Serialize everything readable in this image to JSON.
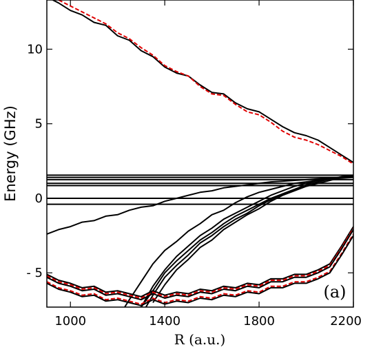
{
  "chart_data": {
    "type": "line",
    "title": "",
    "xlabel": "R (a.u.)",
    "ylabel": "Energy (GHz)",
    "panel_label": "(a)",
    "xlim": [
      900,
      2200
    ],
    "ylim": [
      -7.3,
      13.3
    ],
    "xticks": [
      1000,
      1400,
      1800,
      2200
    ],
    "yticks": [
      {
        "value": 10,
        "label": "10"
      },
      {
        "value": 5,
        "label": "5"
      },
      {
        "value": 0,
        "label": "0"
      },
      {
        "value": -5,
        "label": "- 5"
      }
    ],
    "colors": {
      "computed": "#000000",
      "model": "#e00000"
    },
    "series": [
      {
        "group": "computed",
        "x": [
          925,
          950,
          1000,
          1050,
          1100,
          1150,
          1200,
          1250,
          1300,
          1350,
          1400,
          1450,
          1500,
          1550,
          1600,
          1650,
          1700,
          1750,
          1800,
          1850,
          1900,
          1950,
          2000,
          2050,
          2100,
          2150,
          2200
        ],
        "y": [
          13.3,
          13.1,
          12.6,
          12.3,
          11.8,
          11.6,
          10.9,
          10.6,
          9.9,
          9.5,
          8.8,
          8.4,
          8.2,
          7.6,
          7.1,
          7.0,
          6.4,
          6.0,
          5.8,
          5.3,
          4.8,
          4.4,
          4.2,
          3.9,
          3.4,
          2.9,
          2.4
        ]
      },
      {
        "group": "model",
        "x": [
          950,
          1000,
          1050,
          1100,
          1150,
          1200,
          1250,
          1300,
          1350,
          1400,
          1450,
          1500,
          1550,
          1600,
          1650,
          1700,
          1750,
          1800,
          1850,
          1900,
          1950,
          2000,
          2050,
          2100,
          2150,
          2200
        ],
        "y": [
          13.3,
          12.9,
          12.5,
          12.1,
          11.7,
          11.1,
          10.7,
          10.1,
          9.6,
          8.9,
          8.5,
          8.2,
          7.5,
          7.0,
          6.9,
          6.3,
          5.8,
          5.6,
          5.1,
          4.5,
          4.1,
          3.9,
          3.6,
          3.2,
          2.8,
          2.3
        ]
      },
      {
        "group": "computed",
        "x": [
          900,
          2200
        ],
        "y": [
          1.55,
          1.55
        ]
      },
      {
        "group": "computed",
        "x": [
          900,
          2200
        ],
        "y": [
          1.4,
          1.4
        ]
      },
      {
        "group": "computed",
        "x": [
          900,
          2200
        ],
        "y": [
          1.25,
          1.25
        ]
      },
      {
        "group": "computed",
        "x": [
          900,
          2200
        ],
        "y": [
          1.0,
          1.0
        ]
      },
      {
        "group": "computed",
        "x": [
          900,
          2200
        ],
        "y": [
          0.85,
          0.85
        ]
      },
      {
        "group": "computed",
        "x": [
          900,
          2200
        ],
        "y": [
          0.0,
          0.0
        ]
      },
      {
        "group": "computed",
        "x": [
          900,
          2200
        ],
        "y": [
          -0.4,
          -0.4
        ]
      },
      {
        "group": "computed",
        "x": [
          900,
          950,
          1000,
          1050,
          1100,
          1150,
          1200,
          1250,
          1300,
          1350,
          1400,
          1450,
          1500,
          1550,
          1600,
          1650,
          1700,
          1750,
          1800,
          1850,
          1900,
          1950,
          2000,
          2050,
          2100,
          2150,
          2200
        ],
        "y": [
          -2.4,
          -2.1,
          -1.9,
          -1.6,
          -1.5,
          -1.2,
          -1.1,
          -0.8,
          -0.6,
          -0.5,
          -0.2,
          0.0,
          0.2,
          0.4,
          0.5,
          0.7,
          0.8,
          0.9,
          1.0,
          1.1,
          1.15,
          1.2,
          1.25,
          1.3,
          1.35,
          1.4,
          1.45
        ]
      },
      {
        "group": "computed",
        "x": [
          1300,
          1350,
          1400,
          1450,
          1500,
          1550,
          1600,
          1650,
          1700,
          1750,
          1800,
          1850,
          1900,
          1950,
          2000,
          2050,
          2100,
          2150,
          2200
        ],
        "y": [
          -7.3,
          -5.9,
          -4.8,
          -3.9,
          -3.2,
          -2.5,
          -2.0,
          -1.4,
          -1.0,
          -0.6,
          -0.2,
          0.2,
          0.5,
          0.8,
          1.0,
          1.2,
          1.3,
          1.4,
          1.5
        ]
      },
      {
        "group": "computed",
        "x": [
          1300,
          1350,
          1400,
          1450,
          1500,
          1550,
          1600,
          1650,
          1700,
          1750,
          1800,
          1850,
          1900,
          1950,
          2000,
          2050,
          2100,
          2150,
          2200
        ],
        "y": [
          -7.3,
          -6.2,
          -5.0,
          -4.2,
          -3.5,
          -2.8,
          -2.3,
          -1.7,
          -1.2,
          -0.8,
          -0.4,
          0.0,
          0.3,
          0.6,
          0.9,
          1.1,
          1.3,
          1.4,
          1.5
        ]
      },
      {
        "group": "computed",
        "x": [
          1320,
          1350,
          1400,
          1450,
          1500,
          1550,
          1600,
          1650,
          1700,
          1750,
          1800,
          1850,
          1900,
          1950,
          2000,
          2050,
          2100,
          2150,
          2200
        ],
        "y": [
          -7.3,
          -6.5,
          -5.3,
          -4.5,
          -3.8,
          -3.0,
          -2.5,
          -1.9,
          -1.4,
          -1.0,
          -0.5,
          -0.1,
          0.3,
          0.6,
          0.9,
          1.1,
          1.3,
          1.45,
          1.55
        ]
      },
      {
        "group": "computed",
        "x": [
          1350,
          1400,
          1450,
          1500,
          1550,
          1600,
          1650,
          1700,
          1750,
          1800,
          1850,
          1900,
          1950,
          2000,
          2050,
          2100,
          2150,
          2200
        ],
        "y": [
          -7.0,
          -5.8,
          -4.8,
          -4.1,
          -3.3,
          -2.8,
          -2.1,
          -1.6,
          -1.1,
          -0.7,
          -0.2,
          0.2,
          0.5,
          0.8,
          1.0,
          1.2,
          1.4,
          1.5
        ]
      },
      {
        "group": "computed",
        "x": [
          1230,
          1250,
          1300,
          1350,
          1400,
          1450,
          1500,
          1550,
          1600,
          1650,
          1700,
          1750,
          1800,
          1850,
          1900,
          1950,
          2000,
          2050,
          2100,
          2150,
          2200
        ],
        "y": [
          -7.3,
          -6.8,
          -5.6,
          -4.4,
          -3.5,
          -2.9,
          -2.2,
          -1.7,
          -1.1,
          -0.8,
          -0.3,
          0.1,
          0.4,
          0.6,
          0.8,
          1.0,
          1.1,
          1.2,
          1.3,
          1.35,
          1.4
        ]
      },
      {
        "group": "computed",
        "x": [
          900,
          950,
          1000,
          1050,
          1100,
          1150,
          1200,
          1250,
          1300,
          1350,
          1400,
          1450,
          1500,
          1550,
          1600,
          1650,
          1700,
          1750,
          1800,
          1850,
          1900,
          1950,
          2000,
          2050,
          2100,
          2150,
          2200
        ],
        "y": [
          -5.1,
          -5.5,
          -5.7,
          -6.0,
          -5.9,
          -6.3,
          -6.2,
          -6.4,
          -6.6,
          -6.2,
          -6.5,
          -6.3,
          -6.4,
          -6.1,
          -6.2,
          -5.9,
          -6.0,
          -5.7,
          -5.8,
          -5.4,
          -5.4,
          -5.1,
          -5.1,
          -4.8,
          -4.4,
          -3.2,
          -1.9
        ]
      },
      {
        "group": "model",
        "x": [
          900,
          950,
          1000,
          1050,
          1100,
          1150,
          1200,
          1250,
          1300,
          1350,
          1400,
          1450,
          1500,
          1550,
          1600,
          1650,
          1700,
          1750,
          1800,
          1850,
          1900,
          1950,
          2000,
          2050,
          2100,
          2150,
          2200
        ],
        "y": [
          -5.2,
          -5.6,
          -5.8,
          -6.1,
          -6.0,
          -6.4,
          -6.3,
          -6.5,
          -6.7,
          -6.3,
          -6.6,
          -6.4,
          -6.5,
          -6.2,
          -6.3,
          -6.0,
          -6.1,
          -5.8,
          -5.9,
          -5.5,
          -5.5,
          -5.2,
          -5.2,
          -4.9,
          -4.5,
          -3.3,
          -2.0
        ]
      },
      {
        "group": "computed",
        "x": [
          900,
          950,
          1000,
          1050,
          1100,
          1150,
          1200,
          1250,
          1300,
          1350,
          1400,
          1450,
          1500,
          1550,
          1600,
          1650,
          1700,
          1750,
          1800,
          1850,
          1900,
          1950,
          2000,
          2050,
          2100,
          2150,
          2200
        ],
        "y": [
          -5.3,
          -5.7,
          -5.9,
          -6.2,
          -6.1,
          -6.5,
          -6.4,
          -6.6,
          -6.8,
          -6.4,
          -6.7,
          -6.5,
          -6.6,
          -6.3,
          -6.4,
          -6.1,
          -6.2,
          -5.9,
          -6.0,
          -5.6,
          -5.6,
          -5.3,
          -5.3,
          -5.0,
          -4.6,
          -3.4,
          -2.1
        ]
      },
      {
        "group": "model",
        "x": [
          900,
          950,
          1000,
          1050,
          1100,
          1150,
          1200,
          1250,
          1300,
          1350,
          1400,
          1450,
          1500,
          1550,
          1600,
          1650,
          1700,
          1750,
          1800,
          1850,
          1900,
          1950,
          2000,
          2050,
          2100,
          2150,
          2200
        ],
        "y": [
          -5.6,
          -6.0,
          -6.2,
          -6.5,
          -6.4,
          -6.8,
          -6.7,
          -6.9,
          -7.1,
          -6.7,
          -7.0,
          -6.8,
          -6.9,
          -6.6,
          -6.7,
          -6.4,
          -6.5,
          -6.2,
          -6.3,
          -5.9,
          -5.9,
          -5.6,
          -5.6,
          -5.3,
          -4.9,
          -3.7,
          -2.4
        ]
      },
      {
        "group": "computed",
        "x": [
          900,
          950,
          1000,
          1050,
          1100,
          1150,
          1200,
          1250,
          1300,
          1350,
          1400,
          1450,
          1500,
          1550,
          1600,
          1650,
          1700,
          1750,
          1800,
          1850,
          1900,
          1950,
          2000,
          2050,
          2100,
          2150,
          2200
        ],
        "y": [
          -5.7,
          -6.1,
          -6.3,
          -6.6,
          -6.5,
          -6.9,
          -6.8,
          -7.0,
          -7.2,
          -6.8,
          -7.1,
          -6.9,
          -7.0,
          -6.7,
          -6.8,
          -6.5,
          -6.6,
          -6.3,
          -6.4,
          -6.0,
          -6.0,
          -5.7,
          -5.7,
          -5.4,
          -5.0,
          -3.8,
          -2.5
        ]
      }
    ]
  }
}
